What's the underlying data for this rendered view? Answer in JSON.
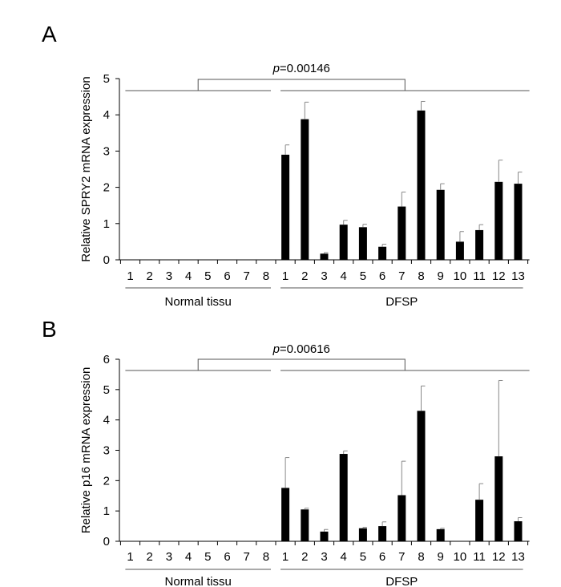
{
  "chart_data": [
    {
      "type": "bar",
      "panel_label": "A",
      "ylabel": "Relative SPRY2 mRNA expression",
      "ylim": [
        0,
        5
      ],
      "yticks": [
        0,
        1,
        2,
        3,
        4,
        5
      ],
      "categories": [
        "1",
        "2",
        "3",
        "4",
        "5",
        "6",
        "7",
        "8",
        "1",
        "2",
        "3",
        "4",
        "5",
        "6",
        "7",
        "8",
        "9",
        "10",
        "11",
        "12",
        "13"
      ],
      "groups": [
        {
          "label": "Normal tissu",
          "start": 0,
          "end": 7
        },
        {
          "label": "DFSP",
          "start": 8,
          "end": 20
        }
      ],
      "values": [
        0,
        0,
        0,
        0,
        0,
        0,
        0,
        0,
        2.9,
        3.88,
        0.17,
        0.97,
        0.9,
        0.36,
        1.47,
        4.12,
        1.93,
        0.5,
        0.82,
        2.15,
        2.1
      ],
      "errors": [
        0,
        0,
        0,
        0,
        0,
        0,
        0,
        0,
        0.27,
        0.47,
        0.03,
        0.12,
        0.08,
        0.07,
        0.4,
        0.25,
        0.17,
        0.28,
        0.15,
        0.6,
        0.32
      ],
      "p_prefix": "p",
      "p_value": "=0.00146"
    },
    {
      "type": "bar",
      "panel_label": "B",
      "ylabel": "Relative p16 mRNA expression",
      "ylim": [
        0,
        6
      ],
      "yticks": [
        0,
        1,
        2,
        3,
        4,
        5,
        6
      ],
      "categories": [
        "1",
        "2",
        "3",
        "4",
        "5",
        "6",
        "7",
        "8",
        "1",
        "2",
        "3",
        "4",
        "5",
        "6",
        "7",
        "8",
        "9",
        "10",
        "11",
        "12",
        "13"
      ],
      "groups": [
        {
          "label": "Normal tissu",
          "start": 0,
          "end": 7
        },
        {
          "label": "DFSP",
          "start": 8,
          "end": 20
        }
      ],
      "values": [
        0,
        0,
        0,
        0,
        0,
        0,
        0,
        0,
        1.76,
        1.05,
        0.32,
        2.88,
        0.43,
        0.5,
        1.52,
        4.3,
        0.4,
        0,
        1.37,
        2.8,
        0.66
      ],
      "errors": [
        0,
        0,
        0,
        0,
        0,
        0,
        0,
        0,
        1.0,
        0.04,
        0.07,
        0.1,
        0.03,
        0.14,
        1.12,
        0.82,
        0.03,
        0,
        0.53,
        2.5,
        0.12
      ],
      "p_prefix": "p",
      "p_value": "=0.00616"
    }
  ]
}
